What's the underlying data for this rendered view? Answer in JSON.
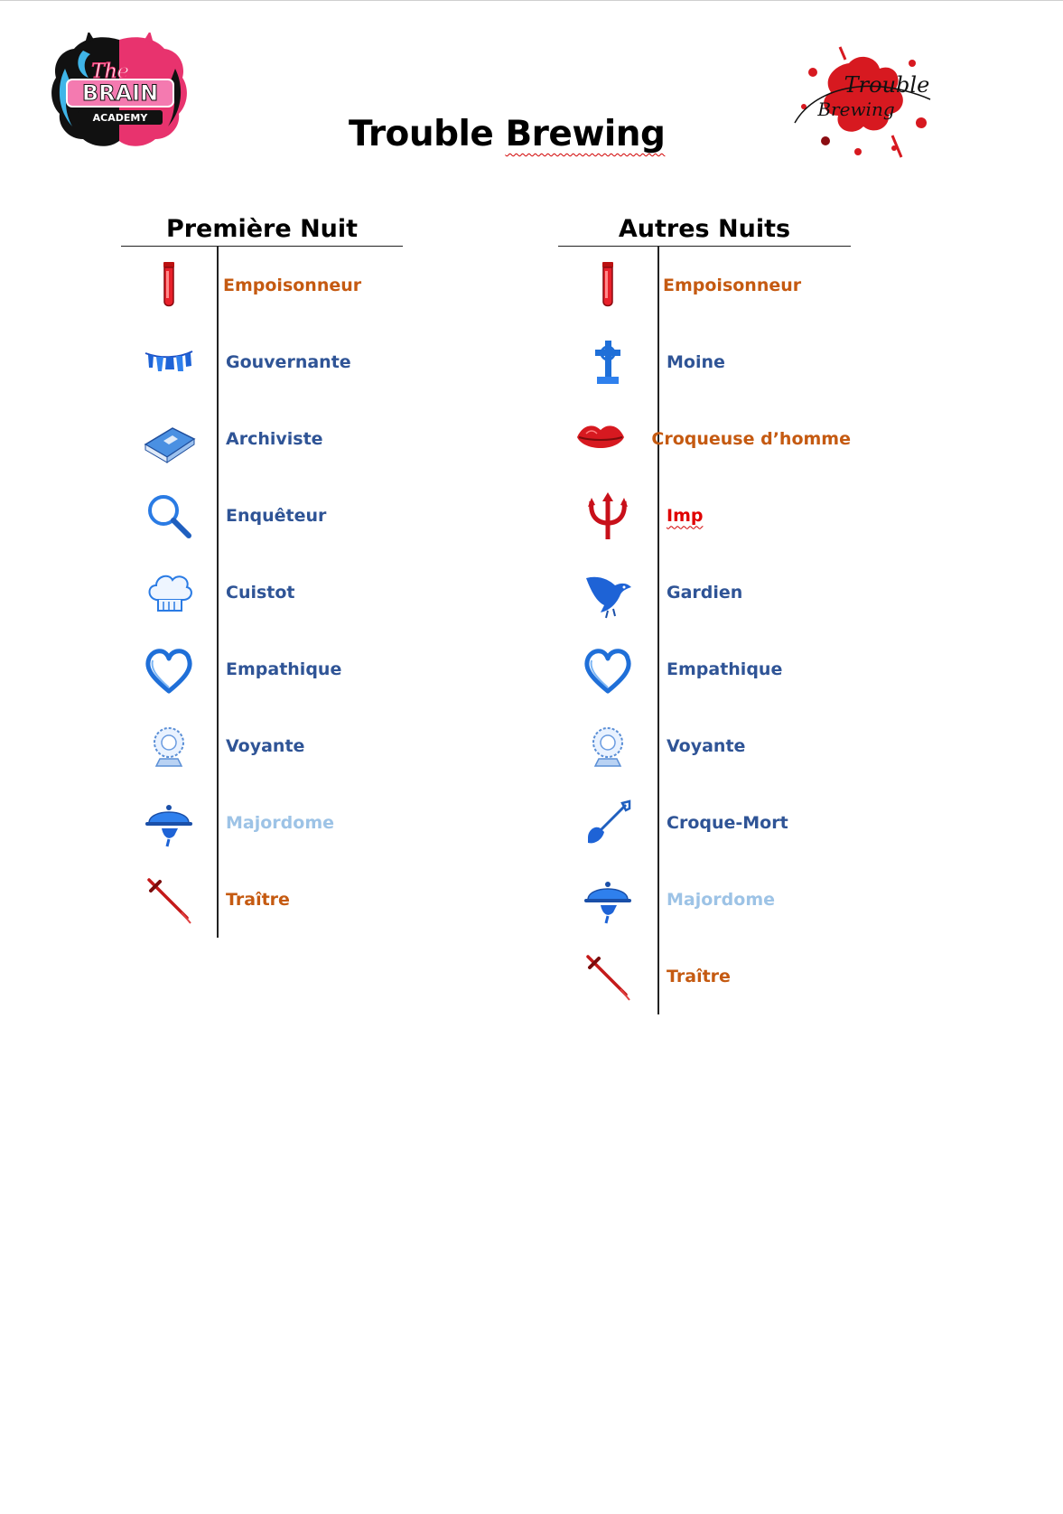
{
  "document": {
    "title_part1": "Trouble",
    "title_part2": "Brewing"
  },
  "logos": {
    "left_text_1": "The",
    "left_text_2": "BRAIN",
    "left_text_3": "ACADEMY",
    "right_text_1": "Trouble",
    "right_text_2": "Brewing"
  },
  "colors": {
    "outsider_orange": "#c55a11",
    "townsfolk_blue": "#2f5496",
    "light_blue": "#9dc3e6",
    "demon_red": "#e00000"
  },
  "first_night": {
    "heading": "Première Nuit",
    "rows": [
      {
        "label": "Empoisonneur",
        "icon": "poison-vial-icon",
        "color": "orange"
      },
      {
        "label": "Gouvernante",
        "icon": "washing-line-icon",
        "color": "blue"
      },
      {
        "label": "Archiviste",
        "icon": "book-icon",
        "color": "blue"
      },
      {
        "label": "Enquêteur",
        "icon": "magnifying-glass-icon",
        "color": "blue"
      },
      {
        "label": "Cuistot",
        "icon": "chef-hat-icon",
        "color": "blue"
      },
      {
        "label": "Empathique",
        "icon": "heart-icon",
        "color": "blue"
      },
      {
        "label": "Voyante",
        "icon": "crystal-ball-icon",
        "color": "blue"
      },
      {
        "label": "Majordome",
        "icon": "cloche-icon",
        "color": "light"
      },
      {
        "label": "Traître",
        "icon": "dagger-icon",
        "color": "orange"
      }
    ]
  },
  "other_nights": {
    "heading": "Autres Nuits",
    "rows": [
      {
        "label": "Empoisonneur",
        "icon": "poison-vial-icon",
        "color": "orange"
      },
      {
        "label": "Moine",
        "icon": "cross-icon",
        "color": "blue"
      },
      {
        "label": "Croqueuse d’homme",
        "icon": "lips-icon",
        "color": "orange"
      },
      {
        "label": "Imp",
        "icon": "trident-icon",
        "color": "red"
      },
      {
        "label": "Gardien",
        "icon": "raven-icon",
        "color": "blue"
      },
      {
        "label": "Empathique",
        "icon": "heart-icon",
        "color": "blue"
      },
      {
        "label": "Voyante",
        "icon": "crystal-ball-icon",
        "color": "blue"
      },
      {
        "label": "Croque-Mort",
        "icon": "shovel-icon",
        "color": "blue"
      },
      {
        "label": "Majordome",
        "icon": "cloche-icon",
        "color": "light"
      },
      {
        "label": "Traître",
        "icon": "dagger-icon",
        "color": "orange"
      }
    ]
  }
}
